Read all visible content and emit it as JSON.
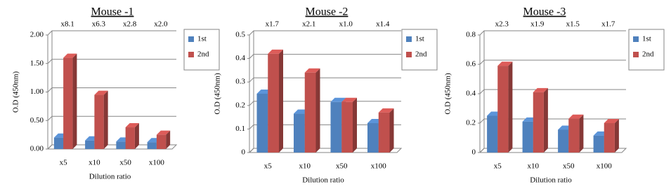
{
  "chart_data": [
    {
      "type": "bar",
      "title": "Mouse -1",
      "x_label": "Dilution ratio",
      "y_label": "O.D (450nm)",
      "categories": [
        "x5",
        "x10",
        "x50",
        "x100"
      ],
      "series": [
        {
          "name": "1st",
          "color": "#4f81bd",
          "values": [
            0.2,
            0.15,
            0.13,
            0.12
          ]
        },
        {
          "name": "2nd",
          "color": "#c0504d",
          "values": [
            1.6,
            0.95,
            0.38,
            0.25
          ]
        }
      ],
      "annotations": [
        "x8.1",
        "x6.3",
        "x2.8",
        "x2.0"
      ],
      "ylim": [
        0,
        2
      ],
      "yticks": [
        {
          "value": 0,
          "label": "0.00"
        },
        {
          "value": 0.5,
          "label": "0.50"
        },
        {
          "value": 1,
          "label": "1.00"
        },
        {
          "value": 1.5,
          "label": "1.50"
        },
        {
          "value": 2,
          "label": "2.00"
        }
      ],
      "grid": true,
      "legend": "right"
    },
    {
      "type": "bar",
      "title": "Mouse -2",
      "x_label": "Dilution ratio",
      "y_label": "O.D (450nm)",
      "categories": [
        "x5",
        "x10",
        "x50",
        "x100"
      ],
      "series": [
        {
          "name": "1st",
          "color": "#4f81bd",
          "values": [
            0.25,
            0.165,
            0.215,
            0.125
          ]
        },
        {
          "name": "2nd",
          "color": "#c0504d",
          "values": [
            0.42,
            0.34,
            0.215,
            0.17
          ]
        }
      ],
      "annotations": [
        "x1.7",
        "x2.1",
        "x1.0",
        "x1.4"
      ],
      "ylim": [
        0,
        0.5
      ],
      "yticks": [
        0,
        0.1,
        0.2,
        0.3,
        0.4,
        0.5
      ],
      "grid": true,
      "legend": "right"
    },
    {
      "type": "bar",
      "title": "Mouse -3",
      "x_label": "Dilution ratio",
      "y_label": "O.D (450nm)",
      "categories": [
        "x5",
        "x10",
        "x50",
        "x100"
      ],
      "series": [
        {
          "name": "1st",
          "color": "#4f81bd",
          "values": [
            0.25,
            0.21,
            0.155,
            0.115
          ]
        },
        {
          "name": "2nd",
          "color": "#c0504d",
          "values": [
            0.59,
            0.41,
            0.23,
            0.2
          ]
        }
      ],
      "annotations": [
        "x2.3",
        "x1.9",
        "x1.5",
        "x1.7"
      ],
      "ylim": [
        0,
        0.8
      ],
      "yticks": [
        0,
        0.2,
        0.4,
        0.6,
        0.8
      ],
      "grid": true,
      "legend": "right"
    }
  ]
}
